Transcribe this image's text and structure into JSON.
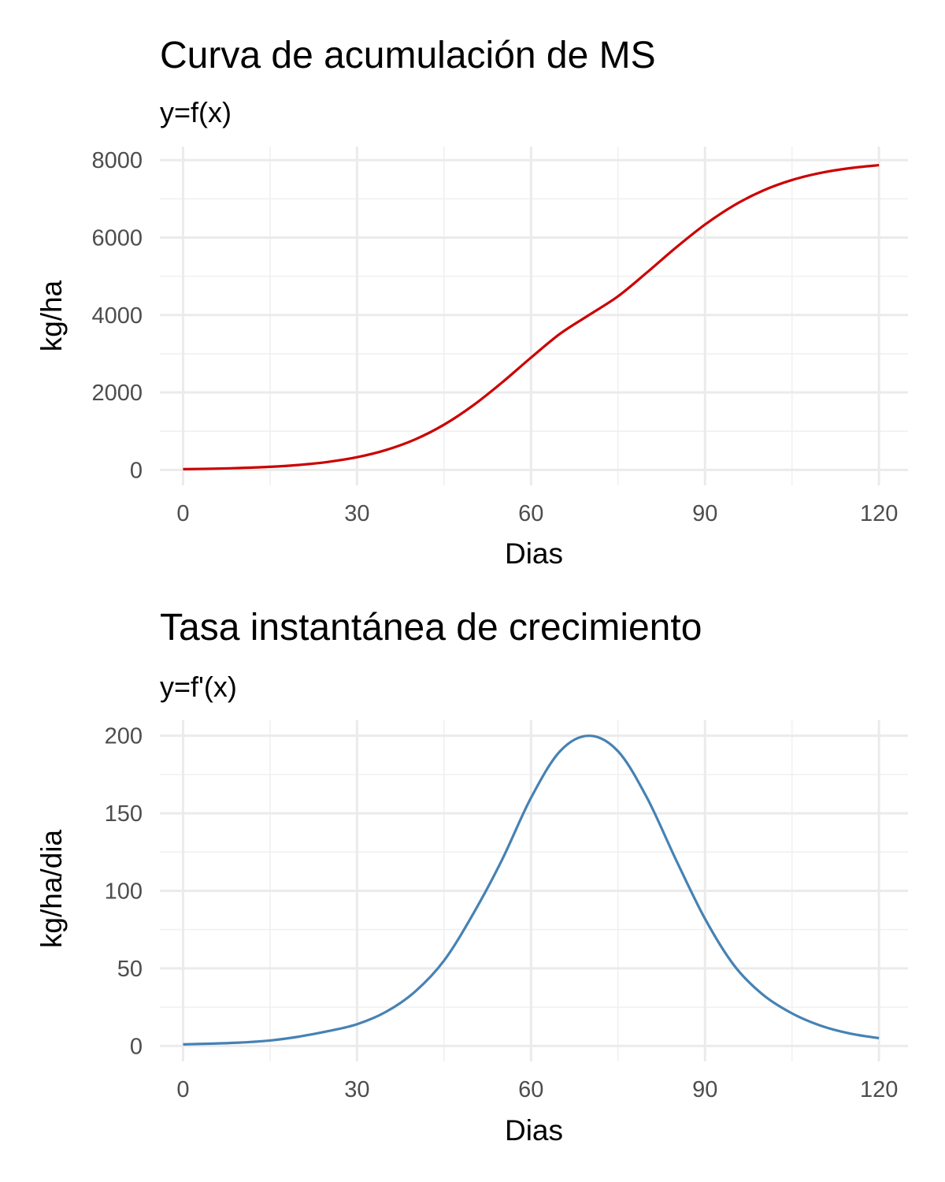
{
  "chart_data": [
    {
      "type": "line",
      "title": "Curva de acumulación de MS",
      "subtitle": "y=f(x)",
      "xlabel": "Dias",
      "ylabel": "kg/ha",
      "xlim": [
        -4,
        125
      ],
      "ylim": [
        -400,
        8350
      ],
      "x_ticks": [
        0,
        30,
        60,
        90,
        120
      ],
      "y_ticks": [
        0,
        2000,
        4000,
        6000,
        8000
      ],
      "x_tick_labels": [
        "0",
        "30",
        "60",
        "90",
        "120"
      ],
      "y_tick_labels": [
        "0",
        "2000",
        "4000",
        "6000",
        "8000"
      ],
      "grid": true,
      "color": "#cc0000",
      "series": [
        {
          "x": [
            0,
            5,
            10,
            15,
            20,
            25,
            30,
            35,
            40,
            45,
            50,
            55,
            60,
            65,
            70,
            75,
            80,
            85,
            90,
            95,
            100,
            105,
            110,
            115,
            120
          ],
          "y": [
            19,
            31,
            50,
            80,
            129,
            207,
            328,
            514,
            787,
            1168,
            1664,
            2257,
            2900,
            3516,
            4000,
            4484,
            5100,
            5743,
            6336,
            6832,
            7213,
            7486,
            7672,
            7793,
            7871
          ]
        }
      ]
    },
    {
      "type": "line",
      "title": "Tasa instantánea de crecimiento",
      "subtitle": "y=f'(x)",
      "xlabel": "Dias",
      "ylabel": "kg/ha/dia",
      "xlim": [
        -4,
        125
      ],
      "ylim": [
        -10,
        210
      ],
      "x_ticks": [
        0,
        30,
        60,
        90,
        120
      ],
      "y_ticks": [
        0,
        50,
        100,
        150,
        200
      ],
      "x_tick_labels": [
        "0",
        "30",
        "60",
        "90",
        "120"
      ],
      "y_tick_labels": [
        "0",
        "50",
        "100",
        "150",
        "200"
      ],
      "grid": true,
      "color": "#4682b4",
      "series": [
        {
          "x": [
            0,
            5,
            10,
            15,
            20,
            25,
            30,
            35,
            40,
            45,
            50,
            55,
            60,
            65,
            70,
            75,
            80,
            85,
            90,
            95,
            100,
            105,
            110,
            115,
            120
          ],
          "y": [
            1,
            1.5,
            2.2,
            3.5,
            6,
            9.5,
            14,
            22,
            35,
            55,
            85,
            120,
            160,
            190,
            200,
            190,
            160,
            120,
            82,
            52,
            33,
            21,
            13,
            8,
            5
          ]
        }
      ]
    }
  ]
}
